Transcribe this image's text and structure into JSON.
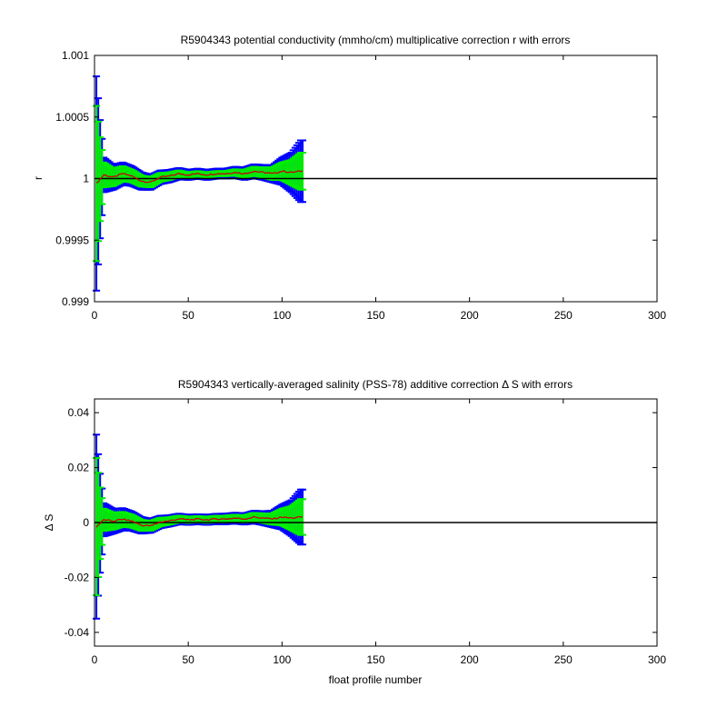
{
  "chart_data": [
    {
      "type": "line",
      "title": "R5904343 potential conductivity (mmho/cm) multiplicative correction r with errors",
      "xlabel": "",
      "ylabel": "r",
      "xlim": [
        0,
        300
      ],
      "ylim": [
        0.999,
        1.001
      ],
      "x_ticks": [
        0,
        50,
        100,
        150,
        200,
        250,
        300
      ],
      "x_tick_labels": [
        "0",
        "50",
        "100",
        "150",
        "200",
        "250",
        "300"
      ],
      "y_ticks": [
        0.999,
        0.9995,
        1,
        1.0005,
        1.001
      ],
      "y_tick_labels": [
        "0.999",
        "0.9995",
        "1",
        "1.0005",
        "1.001"
      ],
      "reference_line": 1,
      "x_range": [
        1,
        111
      ],
      "series": [
        {
          "role": "correction",
          "color": "#cc0000",
          "points": [
            [
              1,
              0.99996
            ],
            [
              5,
              1.00003
            ],
            [
              10,
              1.00001
            ],
            [
              15,
              1.00004
            ],
            [
              20,
              1.00002
            ],
            [
              25,
              0.99998
            ],
            [
              30,
              0.99997
            ],
            [
              35,
              1.00001
            ],
            [
              40,
              1.00002
            ],
            [
              45,
              1.00004
            ],
            [
              50,
              1.00003
            ],
            [
              55,
              1.00004
            ],
            [
              60,
              1.00003
            ],
            [
              65,
              1.00004
            ],
            [
              70,
              1.00004
            ],
            [
              75,
              1.00005
            ],
            [
              80,
              1.00004
            ],
            [
              85,
              1.00006
            ],
            [
              90,
              1.00005
            ],
            [
              95,
              1.00004
            ],
            [
              100,
              1.00006
            ],
            [
              105,
              1.00005
            ],
            [
              110,
              1.00006
            ]
          ]
        },
        {
          "role": "error-outer",
          "color": "#0000ff",
          "half_width": [
            [
              1,
              0.00087
            ],
            [
              3,
              0.00048
            ],
            [
              5,
              0.00014
            ],
            [
              10,
              0.0001
            ],
            [
              20,
              8e-05
            ],
            [
              30,
              6e-05
            ],
            [
              40,
              5e-05
            ],
            [
              50,
              4e-05
            ],
            [
              60,
              4e-05
            ],
            [
              70,
              4e-05
            ],
            [
              80,
              5e-05
            ],
            [
              90,
              6e-05
            ],
            [
              95,
              7e-05
            ],
            [
              100,
              0.00011
            ],
            [
              105,
              0.00016
            ],
            [
              110,
              0.00025
            ]
          ]
        },
        {
          "role": "error-inner",
          "color": "#00ee00",
          "half_width": [
            [
              1,
              0.00063
            ],
            [
              3,
              0.00034
            ],
            [
              5,
              0.0001
            ],
            [
              10,
              7e-05
            ],
            [
              20,
              5e-05
            ],
            [
              30,
              4e-05
            ],
            [
              40,
              3e-05
            ],
            [
              50,
              2e-05
            ],
            [
              60,
              2e-05
            ],
            [
              70,
              2e-05
            ],
            [
              80,
              3e-05
            ],
            [
              90,
              4e-05
            ],
            [
              95,
              5e-05
            ],
            [
              100,
              7e-05
            ],
            [
              105,
              0.0001
            ],
            [
              110,
              0.00015
            ]
          ]
        }
      ]
    },
    {
      "type": "line",
      "title": "R5904343 vertically-averaged salinity (PSS-78) additive correction Δ S with errors",
      "xlabel": "float profile number",
      "ylabel": "Δ S",
      "xlim": [
        0,
        300
      ],
      "ylim": [
        -0.045,
        0.045
      ],
      "x_ticks": [
        0,
        50,
        100,
        150,
        200,
        250,
        300
      ],
      "x_tick_labels": [
        "0",
        "50",
        "100",
        "150",
        "200",
        "250",
        "300"
      ],
      "y_ticks": [
        -0.04,
        -0.02,
        0,
        0.02,
        0.04
      ],
      "y_tick_labels": [
        "-0.04",
        "-0.02",
        "0",
        "0.02",
        "0.04"
      ],
      "reference_line": 0,
      "x_range": [
        1,
        111
      ],
      "series": [
        {
          "role": "correction",
          "color": "#cc0000",
          "points": [
            [
              1,
              -0.0015
            ],
            [
              5,
              0.001
            ],
            [
              10,
              0.0005
            ],
            [
              15,
              0.0012
            ],
            [
              20,
              0.0005
            ],
            [
              25,
              -0.001
            ],
            [
              30,
              -0.0012
            ],
            [
              35,
              0.0002
            ],
            [
              40,
              0.0006
            ],
            [
              45,
              0.0013
            ],
            [
              50,
              0.001
            ],
            [
              55,
              0.0012
            ],
            [
              60,
              0.001
            ],
            [
              65,
              0.0013
            ],
            [
              70,
              0.0013
            ],
            [
              75,
              0.0016
            ],
            [
              80,
              0.0013
            ],
            [
              85,
              0.002
            ],
            [
              90,
              0.0016
            ],
            [
              95,
              0.0013
            ],
            [
              100,
              0.002
            ],
            [
              105,
              0.0016
            ],
            [
              110,
              0.002
            ]
          ]
        },
        {
          "role": "error-outer",
          "color": "#0000ff",
          "half_width": [
            [
              1,
              0.0335
            ],
            [
              3,
              0.018
            ],
            [
              5,
              0.006
            ],
            [
              10,
              0.0045
            ],
            [
              20,
              0.0035
            ],
            [
              30,
              0.0025
            ],
            [
              40,
              0.002
            ],
            [
              50,
              0.0018
            ],
            [
              60,
              0.0018
            ],
            [
              70,
              0.0019
            ],
            [
              80,
              0.002
            ],
            [
              90,
              0.0025
            ],
            [
              95,
              0.003
            ],
            [
              100,
              0.0045
            ],
            [
              105,
              0.0065
            ],
            [
              110,
              0.01
            ]
          ]
        },
        {
          "role": "error-inner",
          "color": "#00ee00",
          "half_width": [
            [
              1,
              0.025
            ],
            [
              3,
              0.013
            ],
            [
              5,
              0.004
            ],
            [
              10,
              0.003
            ],
            [
              20,
              0.0023
            ],
            [
              30,
              0.0017
            ],
            [
              40,
              0.0013
            ],
            [
              50,
              0.0011
            ],
            [
              60,
              0.0011
            ],
            [
              70,
              0.0012
            ],
            [
              80,
              0.0013
            ],
            [
              90,
              0.0017
            ],
            [
              95,
              0.002
            ],
            [
              100,
              0.003
            ],
            [
              105,
              0.0043
            ],
            [
              110,
              0.0065
            ]
          ]
        }
      ]
    }
  ]
}
